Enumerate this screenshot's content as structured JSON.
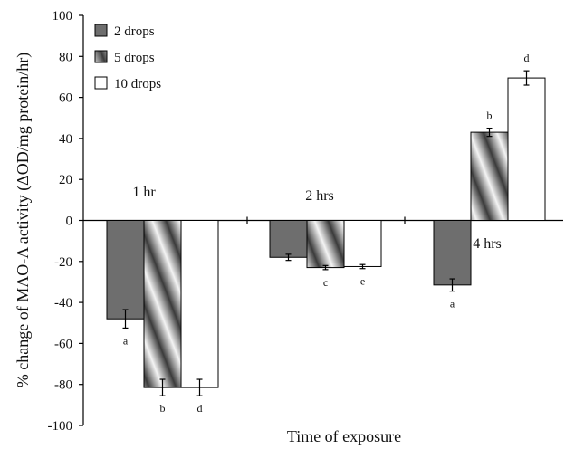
{
  "chart_data": {
    "type": "bar",
    "title": "",
    "xlabel": "Time of exposure",
    "ylabel": "% change of MAO-A activity (ΔOD/mg protein/hr)",
    "ylim": [
      -100,
      100
    ],
    "yticks": [
      -100,
      -80,
      -60,
      -40,
      -20,
      0,
      20,
      40,
      60,
      80,
      100
    ],
    "grid": false,
    "legend_position": "top-left",
    "categories": [
      "1 hr",
      "2 hrs",
      "4 hrs"
    ],
    "series": [
      {
        "name": "2 drops",
        "style": "dark-gray",
        "color": "#6e6e6e",
        "values": [
          -48,
          -18,
          -31.5
        ],
        "errors": [
          4.5,
          1.5,
          3
        ],
        "labels": [
          "a",
          "",
          "a"
        ]
      },
      {
        "name": "5 drops",
        "style": "gradient-striped",
        "color": "#9a9a9a",
        "values": [
          -81.5,
          -23,
          43
        ],
        "errors": [
          4,
          1,
          2
        ],
        "labels": [
          "b",
          "c",
          "b"
        ]
      },
      {
        "name": "10 drops",
        "style": "white",
        "color": "#ffffff",
        "values": [
          -81.5,
          -22.5,
          69.5
        ],
        "errors": [
          4,
          1,
          3.5
        ],
        "labels": [
          "d",
          "e",
          "d"
        ]
      }
    ]
  }
}
